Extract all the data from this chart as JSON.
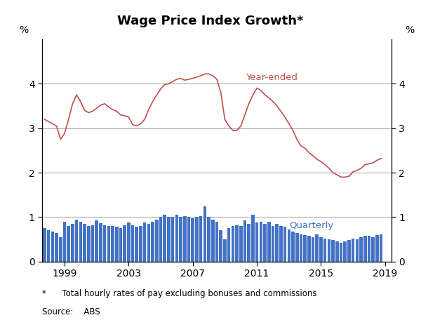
{
  "title": "Wage Price Index Growth*",
  "footnote": "*      Total hourly rates of pay excluding bonuses and commissions",
  "source": "Source:    ABS",
  "ylabel_left": "%",
  "ylabel_right": "%",
  "bar_color": "#4472C4",
  "line_color": "#C0504D",
  "line_label_color": "#C0504D",
  "bar_label_color": "#4472C4",
  "line_label": "Year-ended",
  "bar_label": "Quarterly",
  "ylim": [
    0,
    5
  ],
  "yticks": [
    0,
    1,
    2,
    3,
    4
  ],
  "xlim_start": 1997.6,
  "xlim_end": 2019.4,
  "xticks": [
    1999,
    2003,
    2007,
    2011,
    2015,
    2019
  ],
  "quarterly_dates": [
    1997.75,
    1998.0,
    1998.25,
    1998.5,
    1998.75,
    1999.0,
    1999.25,
    1999.5,
    1999.75,
    2000.0,
    2000.25,
    2000.5,
    2000.75,
    2001.0,
    2001.25,
    2001.5,
    2001.75,
    2002.0,
    2002.25,
    2002.5,
    2002.75,
    2003.0,
    2003.25,
    2003.5,
    2003.75,
    2004.0,
    2004.25,
    2004.5,
    2004.75,
    2005.0,
    2005.25,
    2005.5,
    2005.75,
    2006.0,
    2006.25,
    2006.5,
    2006.75,
    2007.0,
    2007.25,
    2007.5,
    2007.75,
    2008.0,
    2008.25,
    2008.5,
    2008.75,
    2009.0,
    2009.25,
    2009.5,
    2009.75,
    2010.0,
    2010.25,
    2010.5,
    2010.75,
    2011.0,
    2011.25,
    2011.5,
    2011.75,
    2012.0,
    2012.25,
    2012.5,
    2012.75,
    2013.0,
    2013.25,
    2013.5,
    2013.75,
    2014.0,
    2014.25,
    2014.5,
    2014.75,
    2015.0,
    2015.25,
    2015.5,
    2015.75,
    2016.0,
    2016.25,
    2016.5,
    2016.75,
    2017.0,
    2017.25,
    2017.5,
    2017.75,
    2018.0,
    2018.25,
    2018.5,
    2018.75
  ],
  "quarterly_values": [
    0.75,
    0.7,
    0.68,
    0.65,
    0.55,
    0.9,
    0.8,
    0.85,
    0.95,
    0.9,
    0.85,
    0.8,
    0.82,
    0.92,
    0.87,
    0.82,
    0.8,
    0.8,
    0.78,
    0.75,
    0.82,
    0.88,
    0.82,
    0.78,
    0.8,
    0.88,
    0.85,
    0.9,
    0.95,
    1.0,
    1.05,
    1.0,
    1.0,
    1.05,
    1.0,
    1.02,
    1.0,
    0.98,
    1.0,
    1.02,
    1.25,
    1.0,
    0.95,
    0.9,
    0.7,
    0.5,
    0.75,
    0.8,
    0.82,
    0.8,
    0.92,
    0.85,
    1.05,
    0.88,
    0.9,
    0.85,
    0.9,
    0.8,
    0.85,
    0.8,
    0.78,
    0.72,
    0.68,
    0.65,
    0.62,
    0.6,
    0.58,
    0.55,
    0.62,
    0.55,
    0.52,
    0.5,
    0.48,
    0.45,
    0.42,
    0.45,
    0.48,
    0.52,
    0.5,
    0.55,
    0.58,
    0.58,
    0.55,
    0.6,
    0.62
  ],
  "yearly_dates": [
    1997.75,
    1998.0,
    1998.25,
    1998.5,
    1998.75,
    1999.0,
    1999.25,
    1999.5,
    1999.75,
    2000.0,
    2000.25,
    2000.5,
    2000.75,
    2001.0,
    2001.25,
    2001.5,
    2001.75,
    2002.0,
    2002.25,
    2002.5,
    2002.75,
    2003.0,
    2003.25,
    2003.5,
    2003.75,
    2004.0,
    2004.25,
    2004.5,
    2004.75,
    2005.0,
    2005.25,
    2005.5,
    2005.75,
    2006.0,
    2006.25,
    2006.5,
    2006.75,
    2007.0,
    2007.25,
    2007.5,
    2007.75,
    2008.0,
    2008.25,
    2008.5,
    2008.75,
    2009.0,
    2009.25,
    2009.5,
    2009.75,
    2010.0,
    2010.25,
    2010.5,
    2010.75,
    2011.0,
    2011.25,
    2011.5,
    2011.75,
    2012.0,
    2012.25,
    2012.5,
    2012.75,
    2013.0,
    2013.25,
    2013.5,
    2013.75,
    2014.0,
    2014.25,
    2014.5,
    2014.75,
    2015.0,
    2015.25,
    2015.5,
    2015.75,
    2016.0,
    2016.25,
    2016.5,
    2016.75,
    2017.0,
    2017.25,
    2017.5,
    2017.75,
    2018.0,
    2018.25,
    2018.5,
    2018.75
  ],
  "yearly_values": [
    3.2,
    3.15,
    3.1,
    3.05,
    2.75,
    2.88,
    3.2,
    3.55,
    3.75,
    3.6,
    3.4,
    3.35,
    3.38,
    3.45,
    3.52,
    3.55,
    3.48,
    3.42,
    3.38,
    3.3,
    3.28,
    3.25,
    3.08,
    3.05,
    3.1,
    3.2,
    3.42,
    3.6,
    3.75,
    3.88,
    3.98,
    4.0,
    4.05,
    4.1,
    4.12,
    4.08,
    4.1,
    4.12,
    4.15,
    4.18,
    4.22,
    4.22,
    4.18,
    4.1,
    3.8,
    3.2,
    3.05,
    2.95,
    2.95,
    3.05,
    3.3,
    3.55,
    3.75,
    3.9,
    3.85,
    3.75,
    3.68,
    3.6,
    3.5,
    3.38,
    3.25,
    3.1,
    2.95,
    2.75,
    2.6,
    2.55,
    2.45,
    2.38,
    2.3,
    2.25,
    2.18,
    2.1,
    2.0,
    1.95,
    1.9,
    1.9,
    1.92,
    2.02,
    2.05,
    2.1,
    2.18,
    2.2,
    2.22,
    2.28,
    2.32
  ],
  "bar_width": 0.2
}
